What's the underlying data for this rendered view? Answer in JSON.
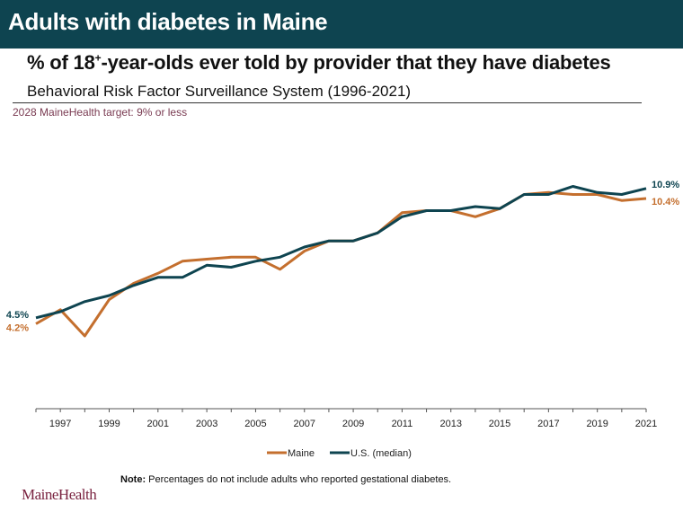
{
  "header": {
    "title": "Adults with diabetes in Maine",
    "subtitle_pre": "% of 18",
    "subtitle_sup": "+",
    "subtitle_post": "-year-olds ever told by provider that they have diabetes",
    "source": "Behavioral Risk Factor Surveillance System (1996-2021)",
    "target": "2028 MaineHealth target: 9% or less"
  },
  "footer": {
    "note_label": "Note:",
    "note_text": " Percentages do not include adults who reported gestational diabetes.",
    "logo": "MaineHealth"
  },
  "chart_data": {
    "type": "line",
    "title": "% of 18+-year-olds ever told by provider that they have diabetes",
    "xlabel": "",
    "ylabel": "",
    "x": [
      1996,
      1997,
      1998,
      1999,
      2000,
      2001,
      2002,
      2003,
      2004,
      2005,
      2006,
      2007,
      2008,
      2009,
      2010,
      2011,
      2012,
      2013,
      2014,
      2015,
      2016,
      2017,
      2018,
      2019,
      2020,
      2021
    ],
    "tick_labels": [
      "1997",
      "1999",
      "2001",
      "2003",
      "2005",
      "2007",
      "2009",
      "2011",
      "2013",
      "2015",
      "2017",
      "2019",
      "2021"
    ],
    "ylim": [
      0,
      13.5
    ],
    "grid": false,
    "legend": "bottom-center",
    "series": [
      {
        "name": "Maine",
        "color": "#c46f2e",
        "values": [
          4.2,
          4.9,
          3.6,
          5.4,
          6.2,
          6.7,
          7.3,
          7.4,
          7.5,
          7.5,
          6.9,
          7.8,
          8.3,
          8.3,
          8.7,
          9.7,
          9.8,
          9.8,
          9.5,
          9.9,
          10.6,
          10.7,
          10.6,
          10.6,
          10.3,
          10.4
        ],
        "start_label": "4.2%",
        "end_label": "10.4%"
      },
      {
        "name": "U.S. (median)",
        "color": "#0e4450",
        "values": [
          4.5,
          4.8,
          5.3,
          5.6,
          6.1,
          6.5,
          6.5,
          7.1,
          7.0,
          7.3,
          7.5,
          8.0,
          8.3,
          8.3,
          8.7,
          9.5,
          9.8,
          9.8,
          10.0,
          9.9,
          10.6,
          10.6,
          11.0,
          10.7,
          10.6,
          10.9
        ],
        "start_label": "4.5%",
        "end_label": "10.9%"
      }
    ]
  }
}
